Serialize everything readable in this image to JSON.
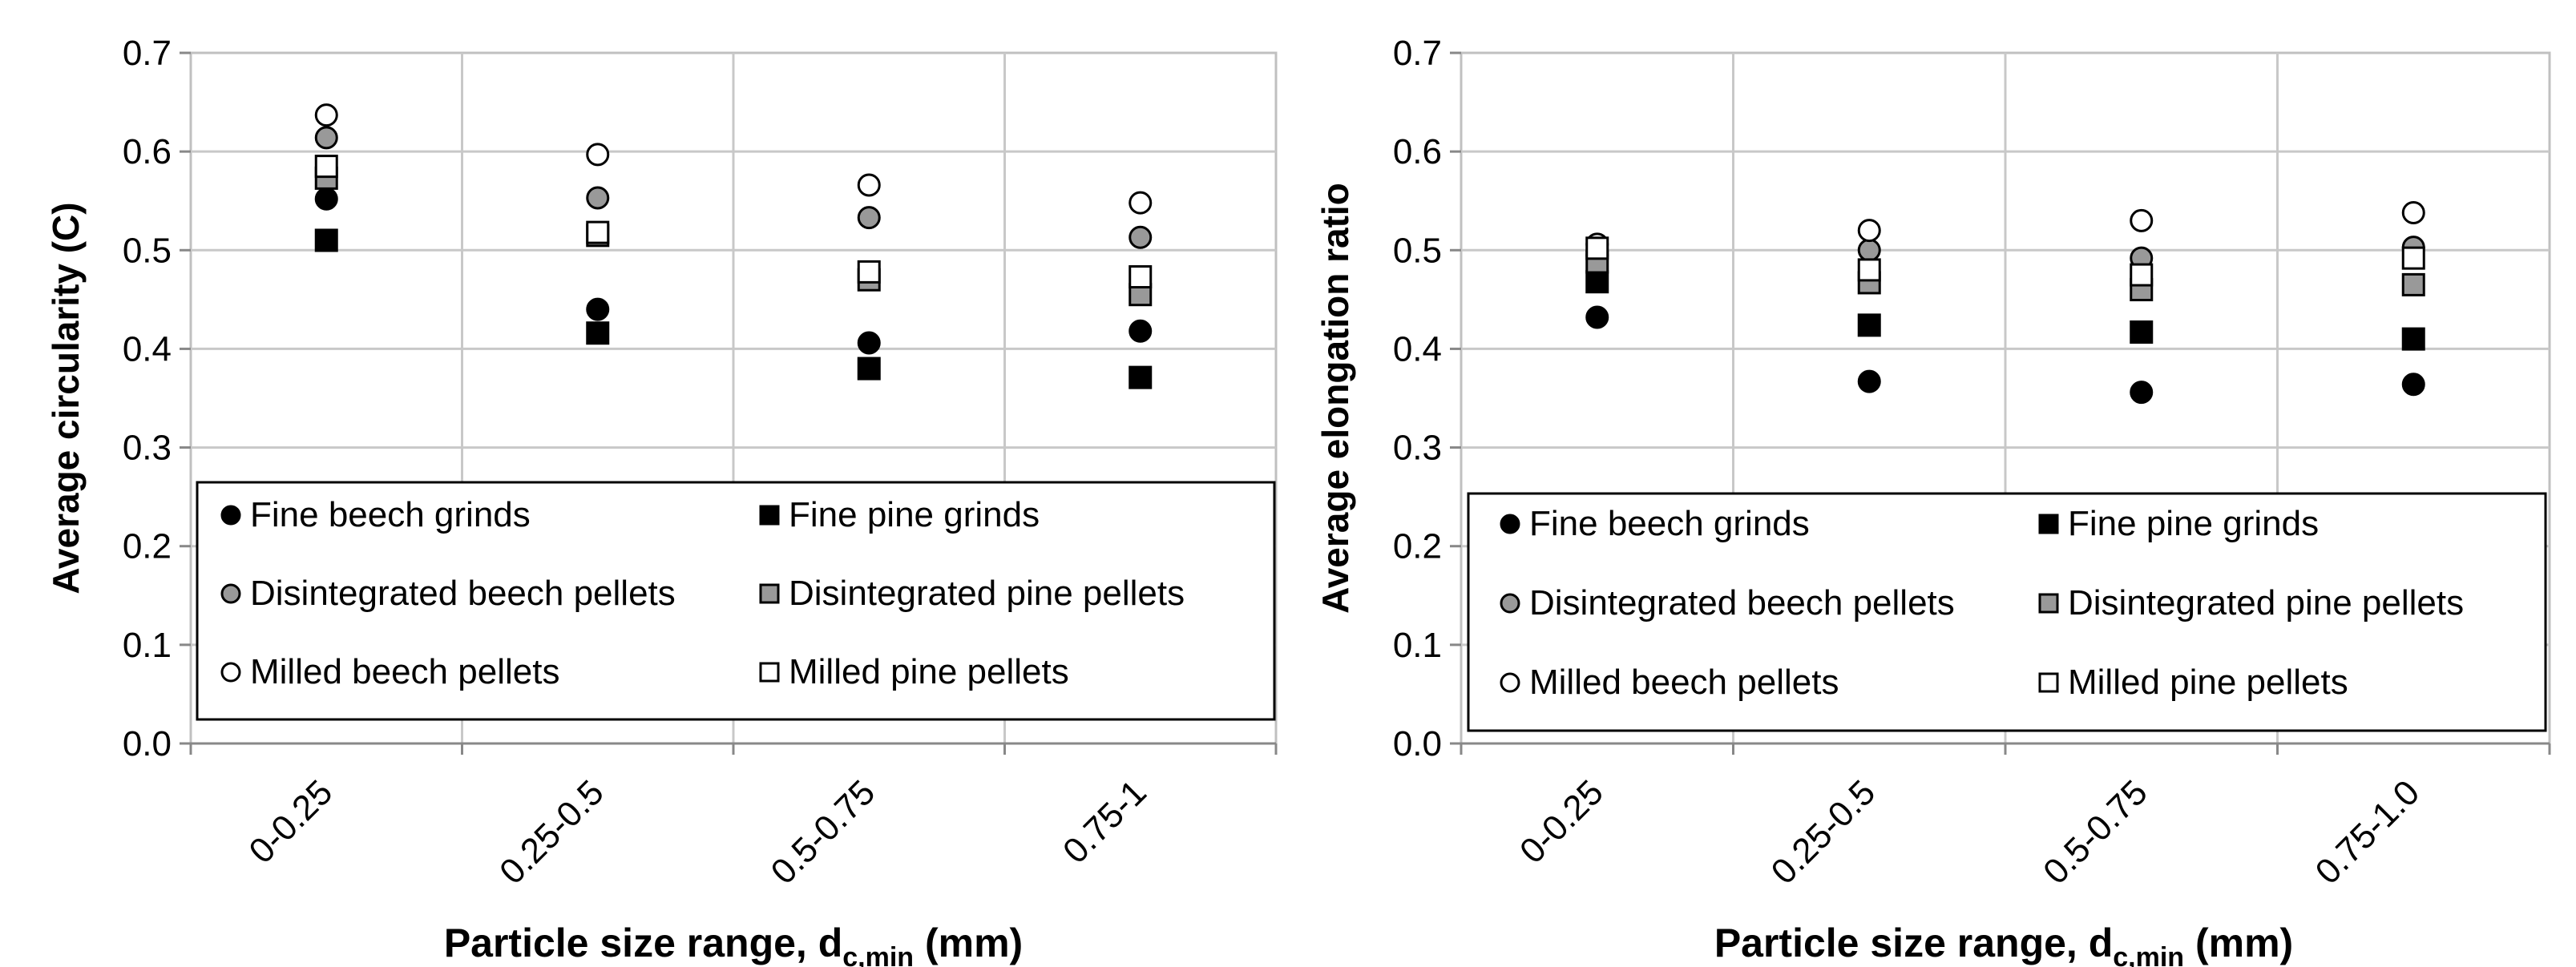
{
  "chart_data": [
    {
      "type": "scatter",
      "categories": [
        "0-0.25",
        "0.25-0.5",
        "0.5-0.75",
        "0.75-1"
      ],
      "ylabel": "Average circularity (C)",
      "xlabel_main": "Particle size range, d",
      "xlabel_sub": "c,min",
      "xlabel_unit": " (mm)",
      "ylim": [
        0,
        0.7
      ],
      "yticks": [
        "0.0",
        "0.1",
        "0.2",
        "0.3",
        "0.4",
        "0.5",
        "0.6",
        "0.7"
      ],
      "grid": true,
      "legend_position": "bottom",
      "series": [
        {
          "name": "Fine beech grinds",
          "marker": "circle",
          "fill": "#000000",
          "values": [
            0.552,
            0.44,
            0.406,
            0.418
          ]
        },
        {
          "name": "Fine pine grinds",
          "marker": "square",
          "fill": "#000000",
          "values": [
            0.51,
            0.416,
            0.38,
            0.371
          ]
        },
        {
          "name": "Disintegrated beech pellets",
          "marker": "circle",
          "fill": "#999999",
          "values": [
            0.614,
            0.553,
            0.533,
            0.513
          ]
        },
        {
          "name": "Disintegrated pine pellets",
          "marker": "square",
          "fill": "#999999",
          "values": [
            0.573,
            0.515,
            0.47,
            0.455
          ]
        },
        {
          "name": "Milled beech pellets",
          "marker": "circle",
          "fill": "#ffffff",
          "values": [
            0.637,
            0.597,
            0.566,
            0.548
          ]
        },
        {
          "name": "Milled pine pellets",
          "marker": "square",
          "fill": "#ffffff",
          "values": [
            0.585,
            0.518,
            0.478,
            0.473
          ]
        }
      ]
    },
    {
      "type": "scatter",
      "categories": [
        "0-0.25",
        "0.25-0.5",
        "0.5-0.75",
        "0.75-1.0"
      ],
      "ylabel": "Average elongation ratio",
      "xlabel_main": "Particle size range, d",
      "xlabel_sub": "c,min",
      "xlabel_unit": " (mm)",
      "ylim": [
        0,
        0.7
      ],
      "yticks": [
        "0.0",
        "0.1",
        "0.2",
        "0.3",
        "0.4",
        "0.5",
        "0.6",
        "0.7"
      ],
      "grid": true,
      "legend_position": "bottom",
      "series": [
        {
          "name": "Fine beech grinds",
          "marker": "circle",
          "fill": "#000000",
          "values": [
            0.432,
            0.367,
            0.356,
            0.364
          ]
        },
        {
          "name": "Fine pine grinds",
          "marker": "square",
          "fill": "#000000",
          "values": [
            0.468,
            0.424,
            0.417,
            0.41
          ]
        },
        {
          "name": "Disintegrated beech pellets",
          "marker": "circle",
          "fill": "#999999",
          "values": [
            0.495,
            0.5,
            0.492,
            0.503
          ]
        },
        {
          "name": "Disintegrated pine pellets",
          "marker": "square",
          "fill": "#999999",
          "values": [
            0.488,
            0.467,
            0.46,
            0.465
          ]
        },
        {
          "name": "Milled beech pellets",
          "marker": "circle",
          "fill": "#ffffff",
          "values": [
            0.506,
            0.52,
            0.53,
            0.538
          ]
        },
        {
          "name": "Milled pine pellets",
          "marker": "square",
          "fill": "#ffffff",
          "values": [
            0.502,
            0.48,
            0.475,
            0.492
          ]
        }
      ]
    }
  ]
}
